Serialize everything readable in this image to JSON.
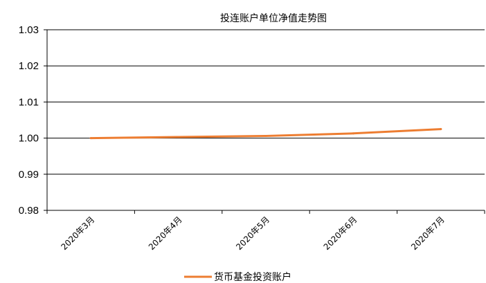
{
  "chart_data": {
    "type": "line",
    "title": "投连账户单位净值走势图",
    "categories": [
      "2020年3月",
      "2020年4月",
      "2020年5月",
      "2020年6月",
      "2020年7月"
    ],
    "x_ticks": [
      "2020年3月",
      "2020年4月",
      "2020年5月",
      "2020年6月",
      "2020年7月"
    ],
    "y_ticks": [
      "0.98",
      "0.99",
      "1.00",
      "1.01",
      "1.02",
      "1.03"
    ],
    "ylim": [
      0.98,
      1.03
    ],
    "grid": true,
    "legend_position": "bottom",
    "series": [
      {
        "name": "货币基金投资账户",
        "color": "#ED7D31",
        "values": [
          1.0,
          1.0003,
          1.0006,
          1.0013,
          1.0025
        ]
      }
    ]
  }
}
